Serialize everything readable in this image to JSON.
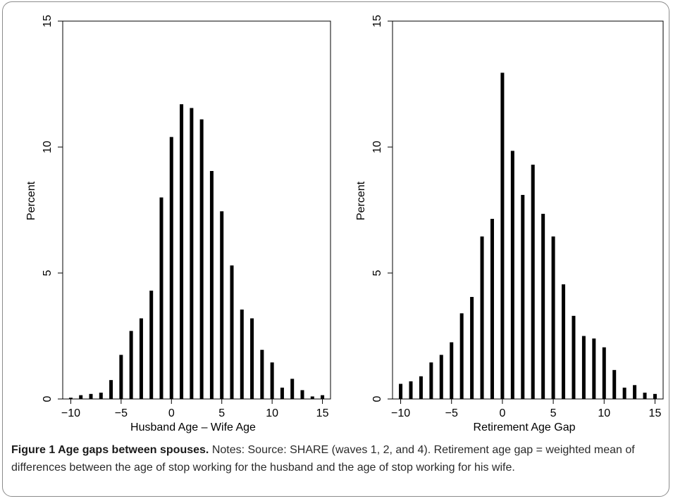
{
  "chart_data": [
    {
      "type": "bar",
      "xlabel": "Husband Age – Wife Age",
      "ylabel": "Percent",
      "xlim": [
        -10.8,
        15.8
      ],
      "ylim": [
        0,
        15
      ],
      "xticks": [
        -10,
        -5,
        0,
        5,
        10,
        15
      ],
      "xtick_labels": [
        "−10",
        "−5",
        "0",
        "5",
        "10",
        "15"
      ],
      "yticks": [
        0,
        5,
        10,
        15
      ],
      "grid": false,
      "x": [
        -10,
        -9,
        -8,
        -7,
        -6,
        -5,
        -4,
        -3,
        -2,
        -1,
        0,
        1,
        2,
        3,
        4,
        5,
        6,
        7,
        8,
        9,
        10,
        11,
        12,
        13,
        14,
        15
      ],
      "values": [
        0.05,
        0.15,
        0.2,
        0.25,
        0.75,
        1.75,
        2.7,
        3.2,
        4.3,
        8.0,
        10.4,
        11.7,
        11.55,
        11.1,
        9.05,
        7.45,
        5.3,
        3.55,
        3.2,
        1.95,
        1.45,
        0.45,
        0.8,
        0.35,
        0.1,
        0.15
      ]
    },
    {
      "type": "bar",
      "xlabel": "Retirement Age Gap",
      "ylabel": "Percent",
      "xlim": [
        -10.8,
        15.8
      ],
      "ylim": [
        0,
        15
      ],
      "xticks": [
        -10,
        -5,
        0,
        5,
        10,
        15
      ],
      "xtick_labels": [
        "−10",
        "−5",
        "0",
        "5",
        "10",
        "15"
      ],
      "yticks": [
        0,
        5,
        10,
        15
      ],
      "grid": false,
      "x": [
        -10,
        -9,
        -8,
        -7,
        -6,
        -5,
        -4,
        -3,
        -2,
        -1,
        0,
        1,
        2,
        3,
        4,
        5,
        6,
        7,
        8,
        9,
        10,
        11,
        12,
        13,
        14,
        15
      ],
      "values": [
        0.6,
        0.7,
        0.9,
        1.45,
        1.75,
        2.25,
        3.4,
        4.05,
        6.45,
        7.15,
        12.95,
        9.85,
        8.1,
        9.3,
        7.35,
        6.45,
        4.55,
        3.3,
        2.5,
        2.4,
        2.05,
        1.15,
        0.45,
        0.55,
        0.25,
        0.2
      ]
    }
  ],
  "caption": {
    "label": "Figure 1 Age gaps between spouses.",
    "text": " Notes: Source: SHARE (waves 1, 2, and 4). Retirement age gap = weighted mean of differences between the age of stop working for the husband and the age of stop working for his wife."
  },
  "colors": {
    "bar": "#000000",
    "axis": "#000000",
    "frame": "#8c8c8c",
    "caption_text": "#2a2a2a"
  }
}
